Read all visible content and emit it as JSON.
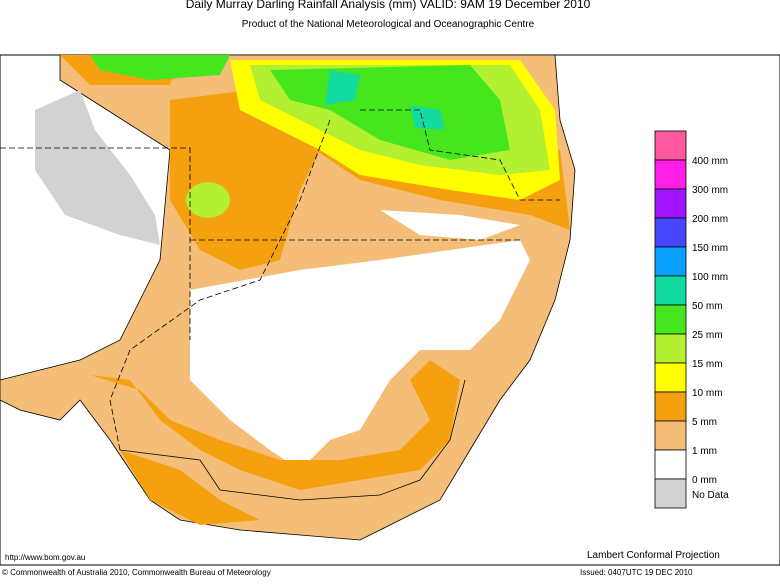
{
  "header": {
    "title": "Daily Murray Darling Rainfall Analysis (mm)  VALID: 9AM 19 December 2010",
    "subtitle": "Product of the National Meteorological and Oceanographic Centre"
  },
  "legend": {
    "colors": [
      "#ff5aa0",
      "#ff1ee6",
      "#a014ff",
      "#4646ff",
      "#0aa0ff",
      "#14dca0",
      "#46e61e",
      "#b4f032",
      "#ffff00",
      "#f5a00f",
      "#f5be78",
      "#ffffff",
      "#d2d2d2"
    ],
    "labels": [
      "400 mm",
      "300 mm",
      "200 mm",
      "150 mm",
      "100 mm",
      "50 mm",
      "25 mm",
      "15 mm",
      "10 mm",
      "5 mm",
      "1 mm",
      "0 mm",
      "No Data"
    ]
  },
  "footer": {
    "url": "http://www.bom.gov.au",
    "projection": "Lambert Conformal Projection",
    "copyright": "© Commonwealth of Australia 2010, Commonwealth Bureau of Meteorology",
    "issued": "Issued: 0407UTC 19 DEC 2010"
  }
}
